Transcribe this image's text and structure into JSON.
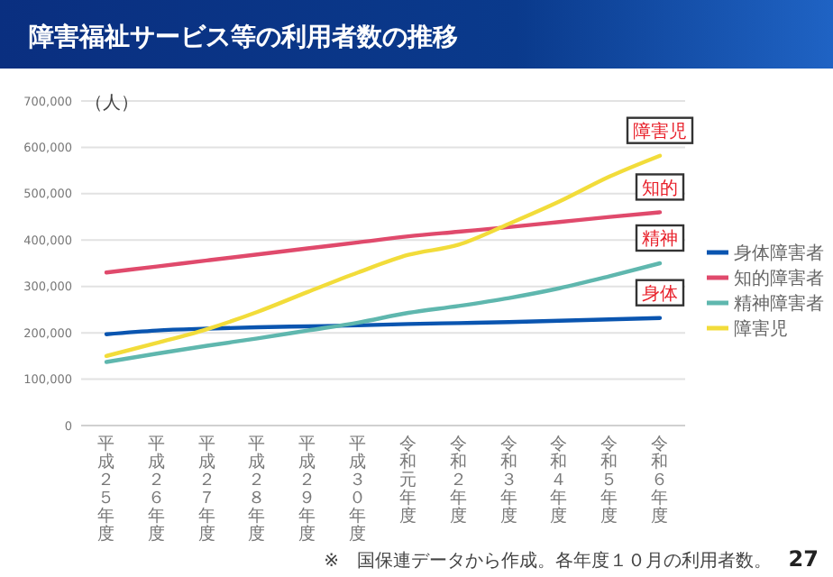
{
  "chart_data": {
    "type": "line",
    "title": "障害福祉サービス等の利用者数の推移",
    "ylabel": "（人）",
    "categories": [
      "平成２５年度",
      "平成２６年度",
      "平成２７年度",
      "平成２８年度",
      "平成２９年度",
      "平成３０年度",
      "令和元年度",
      "令和２年度",
      "令和３年度",
      "令和４年度",
      "令和５年度",
      "令和６年度"
    ],
    "series": [
      {
        "name": "身体障害者",
        "color": "#0a55b0",
        "values": [
          197000,
          205000,
          209000,
          212000,
          214000,
          216000,
          219000,
          221000,
          223000,
          226000,
          229000,
          232000
        ]
      },
      {
        "name": "知的障害者",
        "color": "#e04a6c",
        "values": [
          330000,
          343000,
          356000,
          369000,
          382000,
          395000,
          408000,
          418000,
          428000,
          439000,
          450000,
          460000
        ]
      },
      {
        "name": "精神障害者",
        "color": "#5fb7ae",
        "values": [
          137000,
          155000,
          172000,
          188000,
          205000,
          222000,
          243000,
          258000,
          275000,
          296000,
          322000,
          350000
        ]
      },
      {
        "name": "障害児",
        "color": "#f2dc3a",
        "values": [
          150000,
          178000,
          208000,
          245000,
          288000,
          330000,
          368000,
          390000,
          435000,
          483000,
          537000,
          582000
        ]
      }
    ],
    "ylim": [
      0,
      700000
    ],
    "yticks": [
      {
        "value": 0,
        "label": "0"
      },
      {
        "value": 100000,
        "label": "100,000"
      },
      {
        "value": 200000,
        "label": "200,000"
      },
      {
        "value": 300000,
        "label": "300,000"
      },
      {
        "value": 400000,
        "label": "400,000"
      },
      {
        "value": 500000,
        "label": "500,000"
      },
      {
        "value": 600000,
        "label": "600,000"
      },
      {
        "value": 700000,
        "label": "700,000"
      }
    ],
    "grid": "y",
    "legend": "right",
    "marker": "none",
    "line_style": "solid",
    "annotations": [
      {
        "text": "障害児",
        "x": "令和６年度",
        "y": 582000
      },
      {
        "text": "知的",
        "x": "令和６年度",
        "y": 460000
      },
      {
        "text": "精神",
        "x": "令和６年度",
        "y": 350000
      },
      {
        "text": "身体",
        "x": "令和６年度",
        "y": 232000
      },
      "※　国保連データから作成。各年度１０月の利用者数。",
      "27"
    ]
  }
}
